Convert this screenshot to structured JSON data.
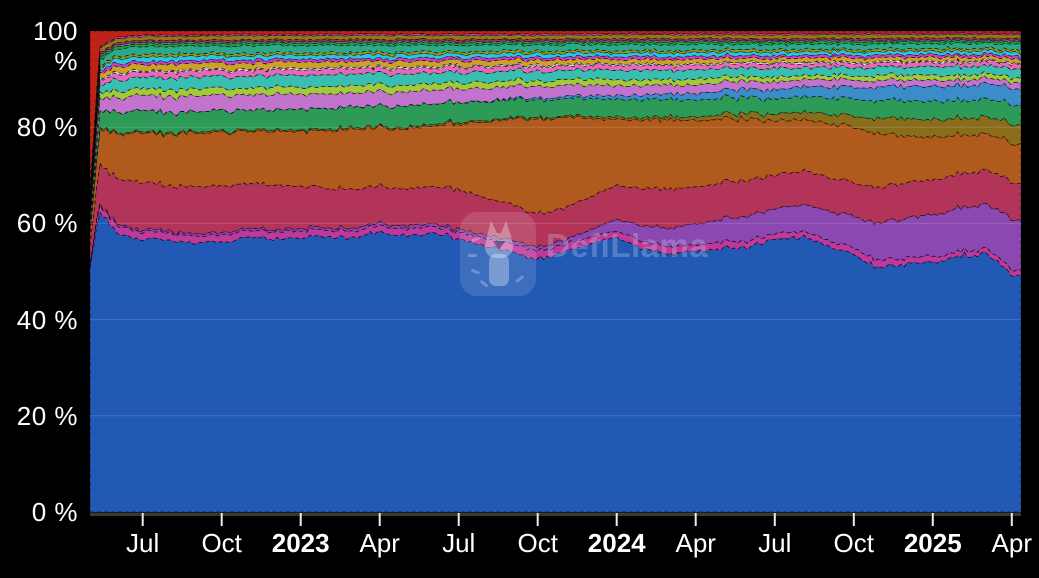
{
  "page": {
    "background": "#000000"
  },
  "watermark": {
    "text": "DefiLlama",
    "logo_icon": "defillama-llama-icon"
  },
  "chart_data": {
    "type": "area",
    "stacked": true,
    "normalized_percent": true,
    "title": "",
    "xlabel": "",
    "ylabel": "",
    "ylim": [
      0,
      100
    ],
    "grid": "horizontal-faint",
    "legend": "none",
    "x_range": {
      "start": "2022-05",
      "end": "2025-04",
      "unit": "months-since-2022-05"
    },
    "t": [
      0,
      0.35,
      1,
      2,
      3,
      4,
      5,
      6,
      7,
      8,
      9,
      10,
      11,
      12,
      13,
      14,
      15,
      16,
      17,
      18,
      19,
      20,
      21,
      22,
      23,
      24,
      25,
      26,
      27,
      28,
      29,
      30,
      31,
      32,
      33,
      34,
      35,
      35.35
    ],
    "y_axis": {
      "tick_format": "percent",
      "ticks": [
        {
          "label": "0 %",
          "value": 0
        },
        {
          "label": "20 %",
          "value": 20
        },
        {
          "label": "40 %",
          "value": 40
        },
        {
          "label": "60 %",
          "value": 60
        },
        {
          "label": "80 %",
          "value": 80
        },
        {
          "label": "100 %",
          "value": 100
        }
      ]
    },
    "x_axis": {
      "ticks": [
        {
          "label": "Jul",
          "t": 2,
          "bold": false
        },
        {
          "label": "Oct",
          "t": 5,
          "bold": false
        },
        {
          "label": "2023",
          "t": 8,
          "bold": true
        },
        {
          "label": "Apr",
          "t": 11,
          "bold": false
        },
        {
          "label": "Jul",
          "t": 14,
          "bold": false
        },
        {
          "label": "Oct",
          "t": 17,
          "bold": false
        },
        {
          "label": "2024",
          "t": 20,
          "bold": true
        },
        {
          "label": "Apr",
          "t": 23,
          "bold": false
        },
        {
          "label": "Jul",
          "t": 26,
          "bold": false
        },
        {
          "label": "Oct",
          "t": 29,
          "bold": false
        },
        {
          "label": "2025",
          "t": 32,
          "bold": true
        },
        {
          "label": "Apr",
          "t": 35,
          "bold": false
        }
      ]
    },
    "series": [
      {
        "name": "blue-base-band",
        "color": "#2159b5",
        "values": [
          50,
          54,
          56.5,
          57,
          58,
          57.5,
          57.5,
          58.5,
          58,
          59.5,
          60,
          59,
          60.5,
          59.5,
          60,
          58,
          56.5,
          55,
          53.5,
          55.5,
          58,
          61,
          57,
          56,
          56.5,
          58,
          58.5,
          61,
          61.5,
          59,
          57.5,
          55,
          56,
          57.5,
          59.5,
          61,
          52,
          51.5
        ]
      },
      {
        "name": "magenta-band",
        "color": "#bf399b",
        "values": [
          0.8,
          1.2,
          1.5,
          1.5,
          1.6,
          1.5,
          1.5,
          1.4,
          1.5,
          1.5,
          1.4,
          1.5,
          1.4,
          1.5,
          1.5,
          1.5,
          1.6,
          1.7,
          1.8,
          1.6,
          1.5,
          1.5,
          1.5,
          1.6,
          1.5,
          1.4,
          1.4,
          1.3,
          1.2,
          1.3,
          1.4,
          1.5,
          1.4,
          1.3,
          1.2,
          1.2,
          1.2,
          1.2
        ]
      },
      {
        "name": "purple-band",
        "color": "#8a48b0",
        "values": [
          0.3,
          0.3,
          0.4,
          0.4,
          0.5,
          0.5,
          0.5,
          0.5,
          0.4,
          0.5,
          0.5,
          0.6,
          0.6,
          0.6,
          0.6,
          0.6,
          0.7,
          0.8,
          0.8,
          1,
          1.5,
          2.5,
          3.5,
          4,
          4.5,
          5,
          5.5,
          5.5,
          6,
          6.5,
          7,
          8.5,
          9,
          9.5,
          10,
          10.5,
          11,
          11
        ]
      },
      {
        "name": "crimson-band",
        "color": "#b23459",
        "values": [
          3.5,
          7,
          9,
          10,
          9.5,
          10,
          10,
          9.5,
          9.5,
          9,
          8.5,
          8.5,
          8,
          8,
          8,
          8.5,
          8,
          7.5,
          7,
          7,
          7,
          7.5,
          8,
          8.5,
          8,
          8,
          8,
          7.5,
          7.5,
          7.5,
          7.5,
          8,
          8,
          8,
          8,
          8,
          8,
          8
        ]
      },
      {
        "name": "orange-band",
        "color": "#b05a1d",
        "values": [
          2.5,
          6,
          9,
          10.5,
          11,
          11.5,
          11.5,
          11,
          11.5,
          12,
          12.5,
          13,
          12.5,
          13,
          13,
          14,
          16,
          18,
          20,
          19.5,
          17,
          14.5,
          15,
          15,
          14.5,
          14,
          13.5,
          12,
          11.5,
          12,
          12.5,
          12,
          10.5,
          10,
          9,
          8.5,
          8.5,
          8.5
        ]
      },
      {
        "name": "dark-olive-band",
        "color": "#8a6d1b",
        "values": [
          0.2,
          0.3,
          0.3,
          0.3,
          0.3,
          0.3,
          0.3,
          0.3,
          0.3,
          0.3,
          0.3,
          0.3,
          0.3,
          0.3,
          0.3,
          0.3,
          0.3,
          0.3,
          0.3,
          0.3,
          0.4,
          0.5,
          0.5,
          0.6,
          0.8,
          1,
          1.2,
          1.5,
          1.8,
          2,
          2.5,
          3.5,
          4,
          4,
          4,
          4,
          4.2,
          4.2
        ]
      },
      {
        "name": "green-band",
        "color": "#2d9a58",
        "values": [
          1.5,
          3,
          4,
          4.5,
          4.3,
          4.2,
          4.3,
          4.2,
          4.3,
          4.5,
          4.5,
          4.5,
          4.4,
          4.5,
          4.4,
          4.2,
          4,
          3.8,
          3.7,
          3.7,
          3.8,
          3.9,
          3.9,
          3.8,
          3.7,
          3.6,
          3.5,
          3.4,
          3.5,
          3.6,
          3.8,
          4,
          4.1,
          4.2,
          4.2,
          4.2,
          4.2,
          4.2
        ]
      },
      {
        "name": "steel-blue-band",
        "color": "#3b8cc9",
        "values": [
          0,
          0,
          0,
          0,
          0,
          0,
          0,
          0,
          0,
          0,
          0,
          0,
          0,
          0,
          0,
          0,
          0.1,
          0.3,
          0.4,
          0.5,
          0.6,
          0.8,
          1,
          1.2,
          1.5,
          1.7,
          1.8,
          2,
          2.2,
          2.4,
          2.6,
          3,
          3.2,
          3.4,
          3.5,
          3.6,
          3.6,
          3.6
        ]
      },
      {
        "name": "orchid-band",
        "color": "#c273ce",
        "values": [
          1.2,
          2.2,
          3,
          3.2,
          3.3,
          3.4,
          3.3,
          3.2,
          3.3,
          3.2,
          3.1,
          3,
          3,
          3,
          2.9,
          2.8,
          2.7,
          2.6,
          2.5,
          2.4,
          2.3,
          2.2,
          2.1,
          2,
          1.9,
          1.8,
          1.8,
          1.7,
          1.6,
          1.6,
          1.5,
          1.5,
          1.4,
          1.4,
          1.3,
          1.3,
          1.3,
          1.3
        ]
      },
      {
        "name": "yellow-green-band",
        "color": "#a3c93a",
        "values": [
          0.5,
          1,
          1.3,
          1.4,
          1.5,
          1.5,
          1.4,
          1.4,
          1.5,
          1.5,
          1.6,
          1.6,
          1.5,
          1.5,
          1.4,
          1.4,
          1.3,
          1.3,
          1.2,
          1.2,
          1.2,
          1.3,
          1.3,
          1.2,
          1.2,
          1.1,
          1.1,
          1.1,
          1,
          1,
          1,
          1.1,
          1.1,
          1.1,
          1.1,
          1.1,
          1.1,
          1.1
        ]
      },
      {
        "name": "turquoise-band",
        "color": "#38bfb2",
        "values": [
          0.8,
          1.6,
          2.2,
          2.4,
          2.5,
          2.6,
          2.5,
          2.4,
          2.5,
          2.6,
          2.6,
          2.5,
          2.4,
          2.4,
          2.3,
          2.2,
          2.1,
          2.1,
          2,
          2,
          2,
          2.1,
          2.1,
          2,
          2,
          1.9,
          1.9,
          1.9,
          1.8,
          1.8,
          1.8,
          1.9,
          1.9,
          1.9,
          1.9,
          1.9,
          1.9,
          1.9
        ]
      },
      {
        "name": "pink-stripe",
        "color": "#e668b8",
        "values": [
          0.4,
          0.8,
          1.1,
          1.2,
          1.2,
          1.3,
          1.2,
          1.2,
          1.2,
          1.2,
          1.2,
          1.2,
          1.1,
          1.1,
          1.1,
          1.1,
          1,
          1,
          1,
          1,
          1,
          1.1,
          1.1,
          1,
          1,
          1,
          1,
          1,
          1,
          1,
          1,
          1,
          1,
          1,
          1,
          1,
          1,
          1
        ]
      },
      {
        "name": "white-flicker-stripe",
        "color": "#d9dde8",
        "constant": 0.3
      },
      {
        "name": "gold-stripe",
        "color": "#c9a227",
        "values": [
          0.4,
          0.8,
          1.2,
          1.3,
          1.4,
          1.4,
          1.3,
          1.3,
          1.3,
          1.3,
          1.3,
          1.2,
          1.2,
          1.2,
          1.1,
          1.1,
          1.1,
          1,
          1,
          1,
          1,
          1,
          1,
          1,
          1,
          0.9,
          0.9,
          0.9,
          0.9,
          0.9,
          0.9,
          0.9,
          0.9,
          0.9,
          0.9,
          0.9,
          0.9,
          0.9
        ]
      },
      {
        "name": "magenta-stripe",
        "color": "#cf3ccf",
        "constant": 0.6
      },
      {
        "name": "cyan-stripe",
        "color": "#2cc3dc",
        "values": [
          0.3,
          0.6,
          0.9,
          1,
          1,
          1,
          1,
          0.9,
          0.9,
          0.9,
          0.9,
          0.9,
          0.9,
          0.9,
          0.8,
          0.8,
          0.8,
          0.8,
          0.8,
          0.8,
          0.8,
          0.8,
          0.8,
          0.8,
          0.8,
          0.8,
          0.8,
          0.8,
          0.8,
          0.8,
          0.8,
          0.8,
          0.8,
          0.8,
          0.8,
          0.8,
          0.8,
          0.8
        ]
      },
      {
        "name": "olive-stripe",
        "color": "#99991c",
        "constant": 0.5
      },
      {
        "name": "teal-stripe",
        "color": "#2aa98d",
        "values": [
          0.5,
          1,
          1.5,
          1.6,
          1.6,
          1.7,
          1.6,
          1.6,
          1.6,
          1.6,
          1.6,
          1.5,
          1.5,
          1.5,
          1.4,
          1.4,
          1.4,
          1.3,
          1.3,
          1.3,
          1.3,
          1.3,
          1.3,
          1.3,
          1.3,
          1.2,
          1.2,
          1.2,
          1.2,
          1.2,
          1.2,
          1.2,
          1.2,
          1.2,
          1.2,
          1.2,
          1.2,
          1.2
        ]
      },
      {
        "name": "green-top-stripe",
        "color": "#27a23c",
        "constant": 0.5
      },
      {
        "name": "slate-top-stripe",
        "color": "#5e7d9e",
        "constant": 0.35
      },
      {
        "name": "crimson-top-stripe",
        "color": "#a83250",
        "constant": 0.4
      },
      {
        "name": "dark-gold-top-stripe",
        "color": "#8f7a16",
        "constant": 0.85
      },
      {
        "name": "magenta-top-line",
        "color": "#d23cb4",
        "constant": 0.3
      },
      {
        "name": "red-collapse-band",
        "color": "#bf2318",
        "values": [
          32,
          3,
          1.2,
          0.9,
          0.8,
          0.8,
          0.7,
          0.7,
          0.7,
          0.7,
          0.6,
          0.6,
          0.6,
          0.6,
          0.6,
          0.6,
          0.6,
          0.6,
          0.6,
          0.6,
          0.5,
          0.5,
          0.5,
          0.5,
          0.5,
          0.5,
          0.5,
          0.5,
          0.5,
          0.5,
          0.5,
          0.5,
          0.5,
          0.5,
          0.5,
          0.5,
          0.5,
          0.5
        ]
      }
    ]
  }
}
